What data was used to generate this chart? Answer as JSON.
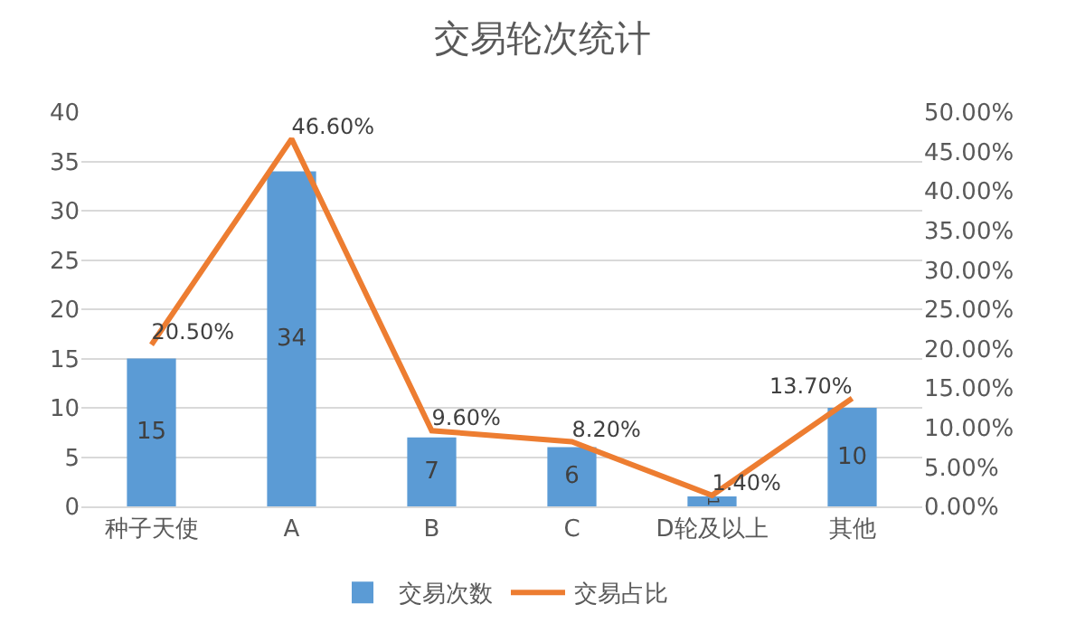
{
  "chart_data": {
    "type": "bar",
    "title": "交易轮次统计",
    "categories": [
      "种子天使",
      "A",
      "B",
      "C",
      "D轮及以上",
      "其他"
    ],
    "series": [
      {
        "name": "交易次数",
        "color": "#5b9bd5",
        "values": [
          15,
          34,
          7,
          6,
          1,
          10
        ],
        "value_labels": [
          "15",
          "34",
          "7",
          "6",
          "1",
          "10"
        ]
      },
      {
        "name": "交易占比",
        "type": "line",
        "axis": "y2",
        "color": "#ed7d31",
        "values": [
          20.5,
          46.6,
          9.6,
          8.2,
          1.4,
          13.7
        ],
        "value_labels": [
          "20.50%",
          "46.60%",
          "9.60%",
          "8.20%",
          "1.40%",
          "13.70%"
        ]
      }
    ],
    "ylim": [
      0,
      40
    ],
    "yticks": [
      0,
      5,
      10,
      15,
      20,
      25,
      30,
      35,
      40
    ],
    "y2lim": [
      0,
      50
    ],
    "y2ticks": [
      {
        "value": 0,
        "label": "0.00%"
      },
      {
        "value": 5,
        "label": "5.00%"
      },
      {
        "value": 10,
        "label": "10.00%"
      },
      {
        "value": 15,
        "label": "15.00%"
      },
      {
        "value": 20,
        "label": "20.00%"
      },
      {
        "value": 25,
        "label": "25.00%"
      },
      {
        "value": 30,
        "label": "30.00%"
      },
      {
        "value": 35,
        "label": "35.00%"
      },
      {
        "value": 40,
        "label": "40.00%"
      },
      {
        "value": 45,
        "label": "45.00%"
      },
      {
        "value": 50,
        "label": "50.00%"
      }
    ],
    "grid": "y",
    "legend": "bottom",
    "marker": "none",
    "line_style": "solid"
  }
}
